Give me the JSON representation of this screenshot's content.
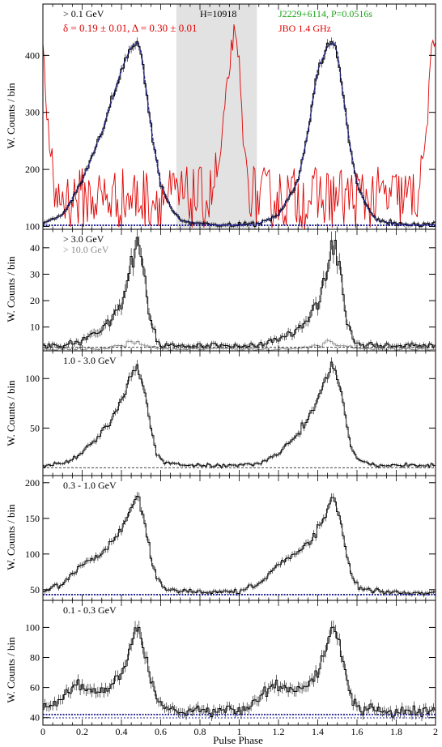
{
  "figure": {
    "xlabel": "Pulse Phase",
    "ylabel": "W. Counts / bin",
    "x_ticks": [
      "0",
      "0.2",
      "0.4",
      "0.6",
      "0.8",
      "1",
      "1.2",
      "1.4",
      "1.6",
      "1.8",
      "2"
    ]
  },
  "colors": {
    "axis": "#000000",
    "profile": "#000000",
    "fit": "#1a1a8c",
    "radio": "#e00000",
    "pulsar_label": "#1aa31a",
    "high_energy": "#8c8c8c",
    "off_pulse_shade": "#e2e2e2"
  },
  "chart_data": [
    {
      "type": "line",
      "panel": "> 0.1 GeV",
      "xlim": [
        0,
        2
      ],
      "ylim": [
        95,
        490
      ],
      "yticks": [
        100,
        200,
        300,
        400
      ],
      "labels": {
        "energy": "> 0.1 GeV",
        "fit": "δ = 0.19 ± 0.01, Δ = 0.30 ± 0.01",
        "htest": "H=10918",
        "pulsar": "J2229+6114, P=0.0516s",
        "radio": "JBO 1.4 GHz"
      },
      "off_pulse_region": [
        0.68,
        1.09
      ],
      "background_level": 102,
      "gamma_profile": {
        "name": "> 0.1 GeV",
        "x": [
          0.0,
          0.1,
          0.2,
          0.3,
          0.35,
          0.4,
          0.45,
          0.48,
          0.5,
          0.53,
          0.56,
          0.6,
          0.65,
          0.7,
          0.8,
          0.9,
          1.0,
          1.1,
          1.2,
          1.3,
          1.35,
          1.4,
          1.45,
          1.48,
          1.5,
          1.53,
          1.56,
          1.6,
          1.65,
          1.7,
          1.8,
          1.9,
          2.0
        ],
        "y": [
          105,
          120,
          180,
          265,
          320,
          375,
          415,
          425,
          405,
          330,
          250,
          175,
          135,
          110,
          105,
          102,
          103,
          105,
          120,
          180,
          265,
          375,
          415,
          425,
          405,
          330,
          250,
          175,
          135,
          110,
          105,
          102,
          103
        ]
      },
      "radio_profile": {
        "name": "JBO 1.4 GHz",
        "x": [
          0.0,
          0.03,
          0.05,
          0.08,
          0.5,
          0.85,
          0.9,
          0.95,
          0.97,
          1.0,
          1.03,
          1.08,
          1.5,
          1.9,
          1.95,
          1.98,
          2.0
        ],
        "y": [
          410,
          250,
          170,
          150,
          150,
          150,
          210,
          380,
          440,
          380,
          200,
          150,
          150,
          150,
          250,
          400,
          430
        ]
      }
    },
    {
      "type": "line",
      "panel": "> 3.0 GeV",
      "xlim": [
        0,
        2
      ],
      "ylim": [
        1,
        47
      ],
      "yticks": [
        10,
        20,
        30,
        40
      ],
      "labels": {
        "energy": "> 3.0 GeV",
        "energy_high": "> 10.0 GeV"
      },
      "background_level": 2.3,
      "series": [
        {
          "name": "> 3.0 GeV",
          "x": [
            0.0,
            0.1,
            0.2,
            0.3,
            0.35,
            0.4,
            0.44,
            0.47,
            0.49,
            0.52,
            0.55,
            0.58,
            0.62,
            0.7,
            0.8,
            0.9,
            1.0,
            1.1,
            1.2,
            1.3,
            1.35,
            1.4,
            1.44,
            1.47,
            1.49,
            1.52,
            1.55,
            1.58,
            1.62,
            1.7,
            1.8,
            1.9,
            2.0
          ],
          "y": [
            3,
            3,
            5,
            9,
            13,
            19,
            30,
            40,
            41,
            28,
            12,
            5,
            3,
            3,
            3,
            3,
            3,
            3,
            5,
            9,
            13,
            19,
            30,
            40,
            41,
            28,
            12,
            5,
            3,
            3,
            3,
            3,
            3
          ]
        },
        {
          "name": "> 10.0 GeV",
          "x": [
            0.0,
            0.3,
            0.4,
            0.45,
            0.5,
            0.6,
            1.0,
            1.3,
            1.4,
            1.45,
            1.5,
            1.6,
            2.0
          ],
          "y": [
            1.5,
            1.8,
            3.2,
            4.5,
            3.5,
            1.8,
            1.5,
            1.8,
            3.2,
            4.5,
            3.5,
            1.8,
            1.5
          ]
        }
      ]
    },
    {
      "type": "line",
      "panel": "1.0 - 3.0 GeV",
      "xlim": [
        0,
        2
      ],
      "ylim": [
        2,
        128
      ],
      "yticks": [
        50,
        100
      ],
      "labels": {
        "energy": "1.0 - 3.0 GeV"
      },
      "background_level": 10,
      "series": [
        {
          "name": "1.0 - 3.0 GeV",
          "x": [
            0.0,
            0.1,
            0.15,
            0.2,
            0.25,
            0.3,
            0.35,
            0.4,
            0.44,
            0.47,
            0.49,
            0.52,
            0.55,
            0.58,
            0.62,
            0.7,
            0.8,
            0.9,
            1.0,
            1.1,
            1.15,
            1.2,
            1.25,
            1.3,
            1.35,
            1.4,
            1.44,
            1.47,
            1.49,
            1.52,
            1.55,
            1.58,
            1.62,
            1.7,
            1.8,
            1.9,
            2.0
          ],
          "y": [
            12,
            14,
            18,
            24,
            34,
            45,
            60,
            78,
            100,
            113,
            110,
            85,
            50,
            25,
            15,
            13,
            12,
            12,
            12,
            14,
            18,
            24,
            34,
            45,
            60,
            78,
            100,
            113,
            110,
            85,
            50,
            25,
            15,
            13,
            12,
            12,
            12
          ]
        }
      ]
    },
    {
      "type": "line",
      "panel": "0.3 - 1.0 GeV",
      "xlim": [
        0,
        2
      ],
      "ylim": [
        35,
        210
      ],
      "yticks": [
        50,
        100,
        150,
        200
      ],
      "labels": {
        "energy": "0.3 - 1.0 GeV"
      },
      "background_level": 43,
      "series": [
        {
          "name": "0.3 - 1.0 GeV",
          "x": [
            0.0,
            0.1,
            0.15,
            0.2,
            0.25,
            0.3,
            0.35,
            0.4,
            0.44,
            0.47,
            0.49,
            0.52,
            0.55,
            0.58,
            0.62,
            0.7,
            0.8,
            0.9,
            1.0,
            1.1,
            1.15,
            1.2,
            1.25,
            1.3,
            1.35,
            1.4,
            1.44,
            1.47,
            1.49,
            1.52,
            1.55,
            1.58,
            1.62,
            1.7,
            1.8,
            1.9,
            2.0
          ],
          "y": [
            48,
            58,
            72,
            85,
            92,
            102,
            115,
            135,
            155,
            180,
            180,
            140,
            95,
            65,
            52,
            48,
            46,
            46,
            47,
            58,
            72,
            85,
            92,
            102,
            115,
            135,
            155,
            180,
            180,
            140,
            95,
            65,
            52,
            48,
            46,
            46,
            47
          ]
        }
      ]
    },
    {
      "type": "line",
      "panel": "0.1 - 0.3 GeV",
      "xlim": [
        0,
        2
      ],
      "ylim": [
        35,
        118
      ],
      "yticks": [
        40,
        60,
        80,
        100
      ],
      "labels": {
        "energy": "0.1 - 0.3 GeV"
      },
      "background_level": 42,
      "series": [
        {
          "name": "0.1 - 0.3 GeV",
          "x": [
            0.0,
            0.08,
            0.12,
            0.16,
            0.2,
            0.25,
            0.3,
            0.35,
            0.4,
            0.44,
            0.47,
            0.49,
            0.52,
            0.55,
            0.58,
            0.62,
            0.7,
            0.8,
            0.9,
            1.0,
            1.08,
            1.12,
            1.16,
            1.2,
            1.25,
            1.3,
            1.35,
            1.4,
            1.44,
            1.47,
            1.49,
            1.52,
            1.55,
            1.58,
            1.62,
            1.7,
            1.8,
            1.9,
            2.0
          ],
          "y": [
            45,
            50,
            56,
            60,
            62,
            58,
            58,
            62,
            70,
            85,
            98,
            98,
            82,
            65,
            52,
            46,
            45,
            44,
            44,
            45,
            50,
            56,
            60,
            62,
            58,
            58,
            62,
            70,
            85,
            98,
            98,
            82,
            65,
            52,
            46,
            45,
            44,
            44,
            45
          ]
        }
      ]
    }
  ]
}
